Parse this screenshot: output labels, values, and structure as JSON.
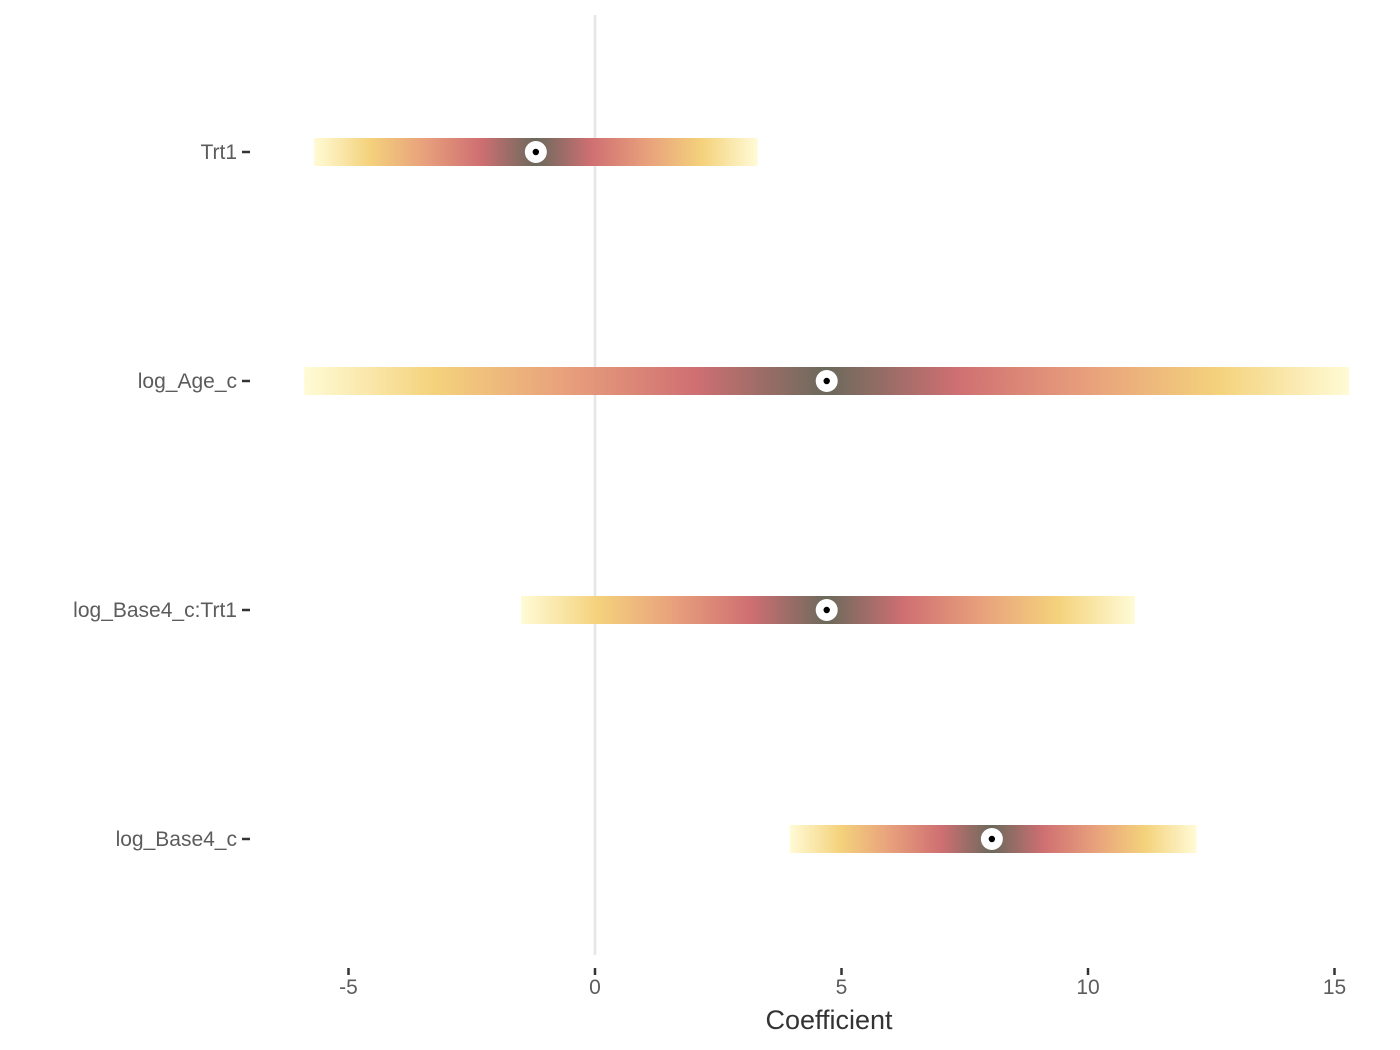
{
  "chart_data": {
    "type": "interval",
    "xlabel": "Coefficient",
    "ylabel": "",
    "xlim": [
      -8.8,
      15.4
    ],
    "x_ticks": [
      -5,
      0,
      5,
      10,
      15
    ],
    "reference_line_x": 0,
    "categories": [
      "Trt1",
      "log_Age_c",
      "log_Base4_c:Trt1",
      "log_Base4_c"
    ],
    "intervals": [
      {
        "label": "Trt1",
        "estimate": -1.2,
        "low": -5.7,
        "high": 3.3
      },
      {
        "label": "log_Age_c",
        "estimate": 4.7,
        "low": -5.9,
        "high": 15.3
      },
      {
        "label": "log_Base4_c:Trt1",
        "estimate": 4.7,
        "low": -1.5,
        "high": 10.95
      },
      {
        "label": "log_Base4_c",
        "estimate": 8.05,
        "low": 3.95,
        "high": 12.2
      }
    ],
    "gradient_colors": [
      "#fffbd6",
      "#f4d27c",
      "#e8a07c",
      "#cf6f72",
      "#6b6a5c"
    ],
    "point_fill": "#ffffff",
    "point_center": "#000000",
    "grid": false,
    "legend": "none"
  }
}
